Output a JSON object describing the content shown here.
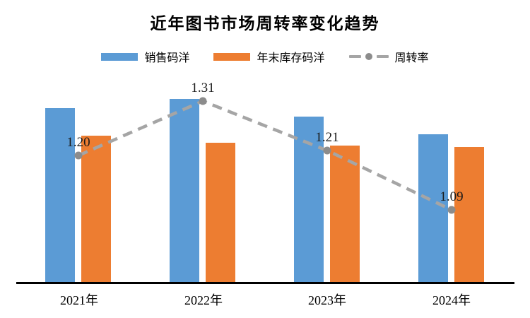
{
  "chart_data": {
    "type": "bar",
    "subtype": "grouped-bars-with-line-overlay",
    "title": "近年图书市场周转率变化趋势",
    "categories": [
      "2021年",
      "2022年",
      "2023年",
      "2024年"
    ],
    "series": [
      {
        "name": "销售码洋",
        "type": "bar",
        "color": "#5b9bd5",
        "values": [
          247,
          260,
          235,
          210
        ]
      },
      {
        "name": "年末库存码洋",
        "type": "bar",
        "color": "#ed7d31",
        "values": [
          208,
          198,
          194,
          192
        ]
      }
    ],
    "line": {
      "name": "周转率",
      "color": "#a5a5a5",
      "marker_color": "#8c8c8c",
      "style": "dashed",
      "values": [
        1.2,
        1.31,
        1.21,
        1.09
      ],
      "labels": [
        "1.20",
        "1.31",
        "1.21",
        "1.09"
      ]
    },
    "value_axis_note": "no value axis shown; bar values are relative heights",
    "grid": false,
    "legend_position": "top",
    "axis_line_color": "#000000"
  }
}
